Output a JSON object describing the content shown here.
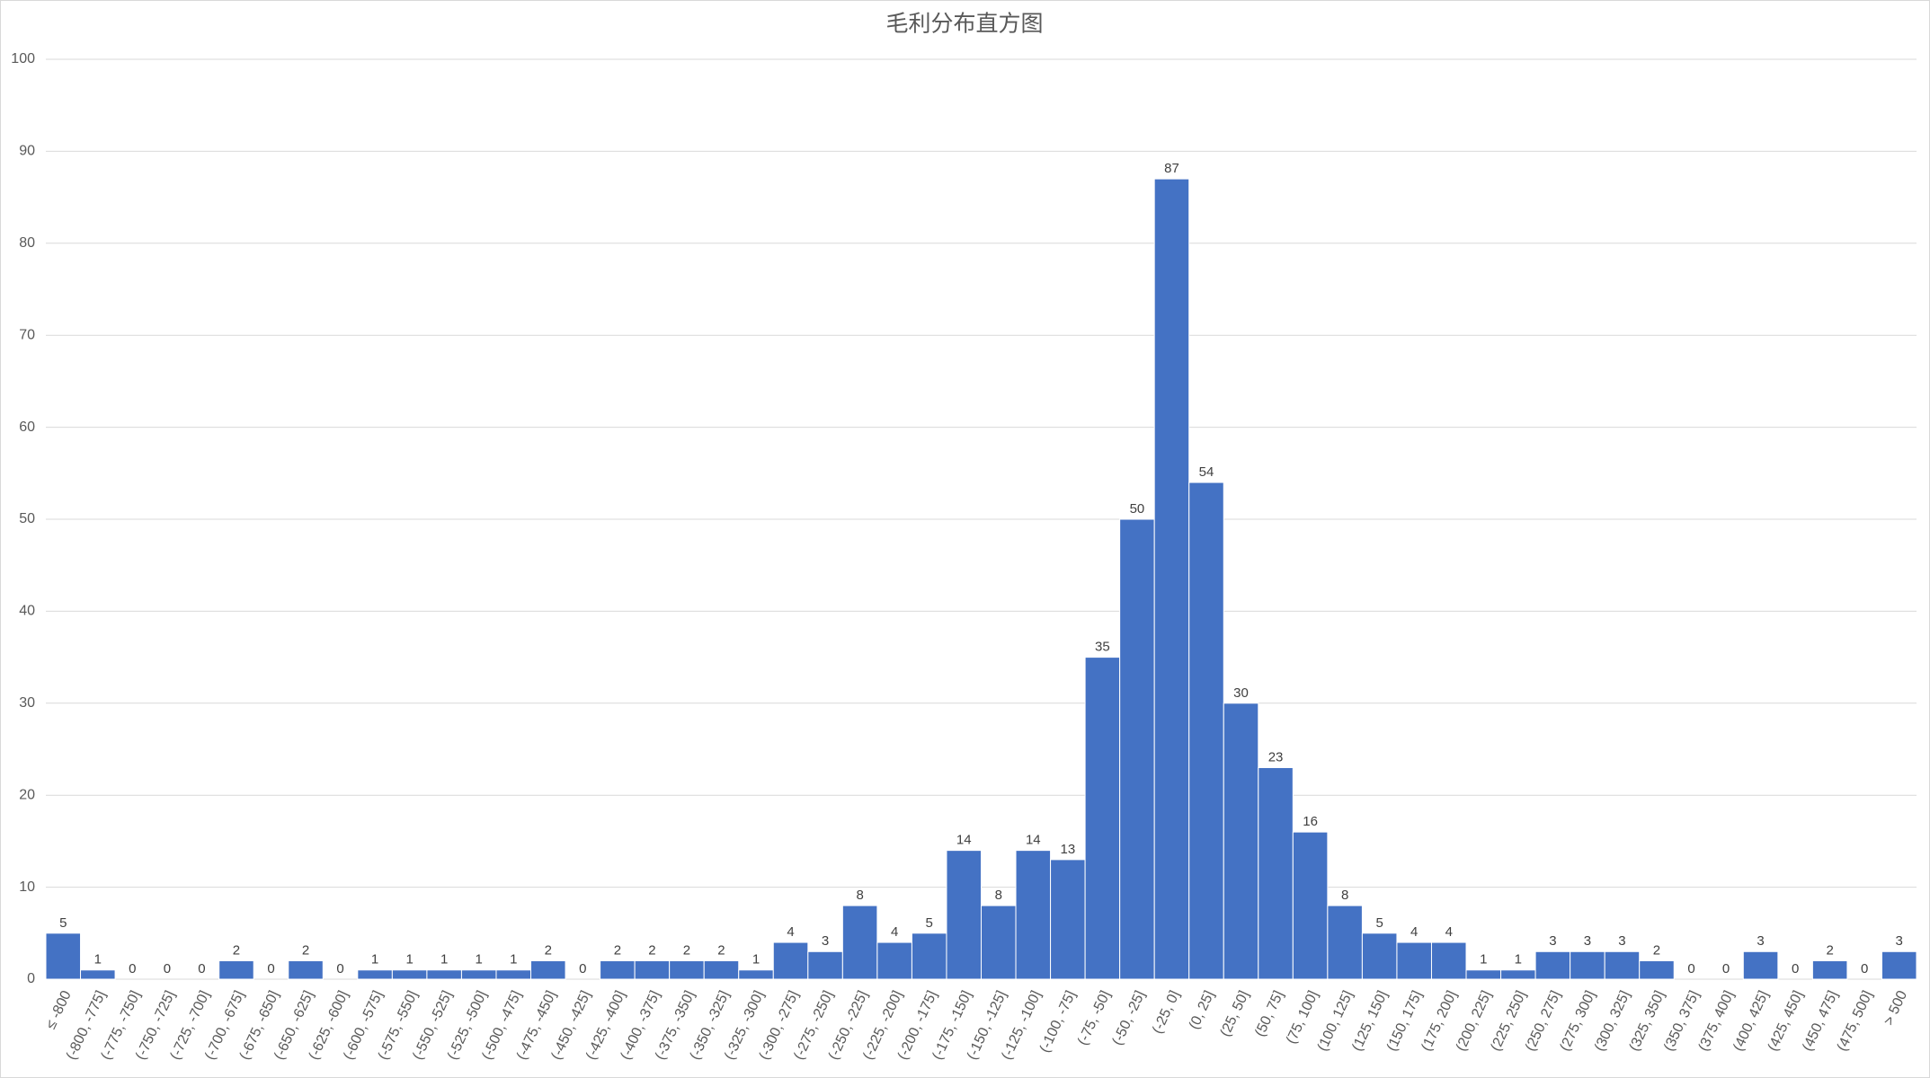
{
  "chart_data": {
    "type": "bar",
    "title": "毛利分布直方图",
    "categories": [
      "≤ -800",
      "(-800, -775]",
      "(-775, -750]",
      "(-750, -725]",
      "(-725, -700]",
      "(-700, -675]",
      "(-675, -650]",
      "(-650, -625]",
      "(-625, -600]",
      "(-600, -575]",
      "(-575, -550]",
      "(-550, -525]",
      "(-525, -500]",
      "(-500, -475]",
      "(-475, -450]",
      "(-450, -425]",
      "(-425, -400]",
      "(-400, -375]",
      "(-375, -350]",
      "(-350, -325]",
      "(-325, -300]",
      "(-300, -275]",
      "(-275, -250]",
      "(-250, -225]",
      "(-225, -200]",
      "(-200, -175]",
      "(-175, -150]",
      "(-150, -125]",
      "(-125, -100]",
      "(-100, -75]",
      "(-75, -50]",
      "(-50, -25]",
      "(-25, 0]",
      "(0, 25]",
      "(25, 50]",
      "(50, 75]",
      "(75, 100]",
      "(100, 125]",
      "(125, 150]",
      "(150, 175]",
      "(175, 200]",
      "(200, 225]",
      "(225, 250]",
      "(250, 275]",
      "(275, 300]",
      "(300, 325]",
      "(325, 350]",
      "(350, 375]",
      "(375, 400]",
      "(400, 425]",
      "(425, 450]",
      "(450, 475]",
      "(475, 500]",
      "> 500"
    ],
    "values": [
      5,
      1,
      0,
      0,
      0,
      2,
      0,
      2,
      0,
      1,
      1,
      1,
      1,
      1,
      2,
      0,
      2,
      2,
      2,
      2,
      1,
      4,
      3,
      8,
      4,
      5,
      14,
      8,
      14,
      13,
      35,
      50,
      87,
      54,
      30,
      23,
      16,
      8,
      5,
      4,
      4,
      1,
      1,
      3,
      3,
      3,
      2,
      0,
      0,
      3,
      0,
      2,
      0,
      3
    ],
    "color": "#4472c4",
    "ylim": [
      0,
      100
    ],
    "yticks": [
      0,
      10,
      20,
      30,
      40,
      50,
      60,
      70,
      80,
      90,
      100
    ],
    "grid": true
  }
}
